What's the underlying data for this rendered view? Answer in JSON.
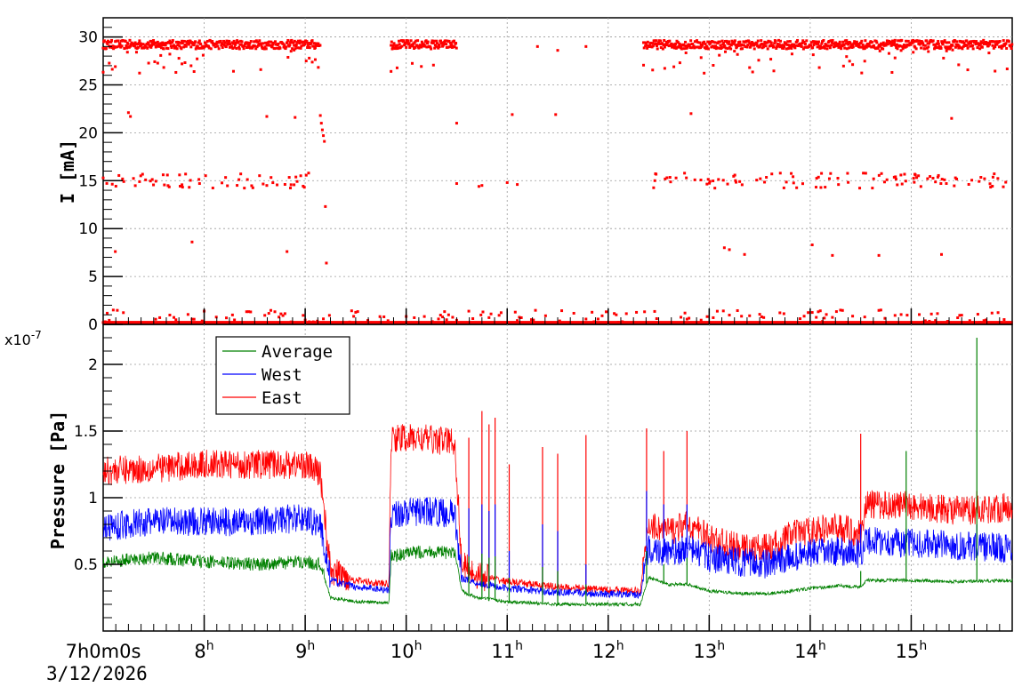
{
  "chart_data": [
    {
      "type": "scatter",
      "ylabel": "I [mA]",
      "ylim": [
        0,
        32
      ],
      "yticks": [
        "0",
        "5",
        "10",
        "15",
        "20",
        "25",
        "30"
      ],
      "grid": true,
      "series": [
        {
          "color": "#ff0000",
          "bands": [
            {
              "level": 29.2,
              "segments": [
                [
                  7.0,
                  9.15
                ],
                [
                  9.85,
                  10.5
                ],
                [
                  12.35,
                  16.0
                ]
              ]
            },
            {
              "level": 15.0,
              "segments": [
                [
                  7.0,
                  9.05
                ],
                [
                  12.45,
                  16.0
                ]
              ]
            },
            {
              "level": 0.2,
              "segments": [
                [
                  7.0,
                  16.0
                ]
              ]
            }
          ],
          "points": [
            [
              7.25,
              22.1
            ],
            [
              7.27,
              21.7
            ],
            [
              8.62,
              21.7
            ],
            [
              8.9,
              21.6
            ],
            [
              9.15,
              21.8
            ],
            [
              9.16,
              21.0
            ],
            [
              9.17,
              20.3
            ],
            [
              9.18,
              19.7
            ],
            [
              9.19,
              19.1
            ],
            [
              9.2,
              12.3
            ],
            [
              9.21,
              6.4
            ],
            [
              7.12,
              7.6
            ],
            [
              7.88,
              8.6
            ],
            [
              8.82,
              7.6
            ],
            [
              10.5,
              21.0
            ],
            [
              10.5,
              14.7
            ],
            [
              10.72,
              14.4
            ],
            [
              10.75,
              14.5
            ],
            [
              11.0,
              14.8
            ],
            [
              11.05,
              21.9
            ],
            [
              11.1,
              14.6
            ],
            [
              11.48,
              21.9
            ],
            [
              11.3,
              29.0
            ],
            [
              11.5,
              28.6
            ],
            [
              11.78,
              29.0
            ],
            [
              12.82,
              22.0
            ],
            [
              13.15,
              8.0
            ],
            [
              13.2,
              7.8
            ],
            [
              13.35,
              7.3
            ],
            [
              14.02,
              8.3
            ],
            [
              14.22,
              7.2
            ],
            [
              14.68,
              7.2
            ],
            [
              15.3,
              7.3
            ],
            [
              15.4,
              21.5
            ]
          ]
        }
      ]
    },
    {
      "type": "line",
      "ylabel": "Pressure [Pa]",
      "exponent": "x10",
      "exponent_power": "-7",
      "ylim": [
        0.0,
        2.3
      ],
      "yticks": [
        "0.5",
        "1",
        "1.5",
        "2"
      ],
      "grid": true,
      "xlim": [
        7.0,
        16.0
      ],
      "x_start_label": "7h0m0s",
      "xticks": [
        {
          "hour": "8",
          "suffix": "h"
        },
        {
          "hour": "9",
          "suffix": "h"
        },
        {
          "hour": "10",
          "suffix": "h"
        },
        {
          "hour": "11",
          "suffix": "h"
        },
        {
          "hour": "12",
          "suffix": "h"
        },
        {
          "hour": "13",
          "suffix": "h"
        },
        {
          "hour": "14",
          "suffix": "h"
        },
        {
          "hour": "15",
          "suffix": "h"
        }
      ],
      "date": "3/12/2026",
      "legend": {
        "position": "top-left",
        "entries": [
          {
            "name": "Average",
            "color": "#008000"
          },
          {
            "name": "West",
            "color": "#0000ff"
          },
          {
            "name": "East",
            "color": "#ff0000"
          }
        ]
      },
      "series": [
        {
          "name": "East",
          "color": "#ff0000",
          "x": [
            7.0,
            7.5,
            8.0,
            8.5,
            9.0,
            9.15,
            9.25,
            9.5,
            9.83,
            9.85,
            10.2,
            10.48,
            10.55,
            10.7,
            11.0,
            11.5,
            12.0,
            12.32,
            12.4,
            12.6,
            12.8,
            13.0,
            13.3,
            13.6,
            13.8,
            14.0,
            14.3,
            14.5,
            14.55,
            15.0,
            15.5,
            16.0
          ],
          "values": [
            1.2,
            1.22,
            1.25,
            1.25,
            1.25,
            1.18,
            0.45,
            0.38,
            0.35,
            1.45,
            1.44,
            1.42,
            0.5,
            0.42,
            0.37,
            0.33,
            0.31,
            0.3,
            0.8,
            0.75,
            0.8,
            0.7,
            0.62,
            0.62,
            0.72,
            0.75,
            0.78,
            0.72,
            0.95,
            0.94,
            0.9,
            0.93
          ]
        },
        {
          "name": "West",
          "color": "#0000ff",
          "x": [
            7.0,
            7.5,
            8.0,
            8.5,
            9.0,
            9.15,
            9.25,
            9.5,
            9.83,
            9.85,
            10.2,
            10.48,
            10.55,
            10.7,
            11.0,
            11.5,
            12.0,
            12.32,
            12.4,
            12.6,
            12.8,
            13.0,
            13.3,
            13.6,
            13.8,
            14.0,
            14.3,
            14.5,
            14.55,
            15.0,
            15.5,
            16.0
          ],
          "values": [
            0.78,
            0.82,
            0.82,
            0.82,
            0.85,
            0.8,
            0.38,
            0.33,
            0.31,
            0.88,
            0.9,
            0.88,
            0.4,
            0.36,
            0.32,
            0.29,
            0.28,
            0.27,
            0.62,
            0.58,
            0.62,
            0.55,
            0.52,
            0.5,
            0.55,
            0.58,
            0.6,
            0.58,
            0.68,
            0.66,
            0.64,
            0.62
          ]
        },
        {
          "name": "Average",
          "color": "#008000",
          "x": [
            7.0,
            7.5,
            8.0,
            8.5,
            9.0,
            9.15,
            9.25,
            9.5,
            9.83,
            9.85,
            10.2,
            10.48,
            10.55,
            10.7,
            11.0,
            11.5,
            12.0,
            12.32,
            12.4,
            12.6,
            12.8,
            13.0,
            13.3,
            13.6,
            13.8,
            14.0,
            14.3,
            14.5,
            14.55,
            15.0,
            15.5,
            16.0
          ],
          "values": [
            0.52,
            0.55,
            0.52,
            0.5,
            0.52,
            0.5,
            0.25,
            0.22,
            0.21,
            0.56,
            0.6,
            0.58,
            0.3,
            0.25,
            0.22,
            0.2,
            0.2,
            0.2,
            0.4,
            0.35,
            0.35,
            0.3,
            0.28,
            0.28,
            0.3,
            0.32,
            0.34,
            0.33,
            0.38,
            0.38,
            0.37,
            0.38
          ]
        }
      ],
      "spikes": [
        {
          "x": 10.62,
          "east": 1.45,
          "west": 0.92,
          "average": 0.56
        },
        {
          "x": 10.75,
          "east": 1.65,
          "west": 0.95,
          "average": 0.58
        },
        {
          "x": 10.82,
          "east": 1.55,
          "west": 0.9,
          "average": 0.55
        },
        {
          "x": 10.88,
          "east": 1.6,
          "west": 0.95,
          "average": 0.56
        },
        {
          "x": 11.02,
          "east": 1.25,
          "west": 0.6,
          "average": 0.4
        },
        {
          "x": 11.35,
          "east": 1.38,
          "west": 0.8,
          "average": 0.48
        },
        {
          "x": 11.5,
          "east": 1.33,
          "west": 0.75,
          "average": 0.45
        },
        {
          "x": 11.78,
          "east": 1.47,
          "west": 0.5,
          "average": 0.35
        },
        {
          "x": 12.38,
          "east": 1.52,
          "west": 1.05,
          "average": 0.6
        },
        {
          "x": 12.55,
          "east": 1.35,
          "west": 0.95,
          "average": 0.5
        },
        {
          "x": 12.78,
          "east": 1.5,
          "west": 0.95,
          "average": 0.55
        },
        {
          "x": 14.5,
          "east": 1.48,
          "west": 0.8,
          "average": 0.45
        },
        {
          "x": 15.65,
          "east": 1.05,
          "west": 0.8,
          "average": 2.2
        },
        {
          "x": 14.95,
          "east": 1.05,
          "west": 0.75,
          "average": 1.35
        }
      ]
    }
  ]
}
